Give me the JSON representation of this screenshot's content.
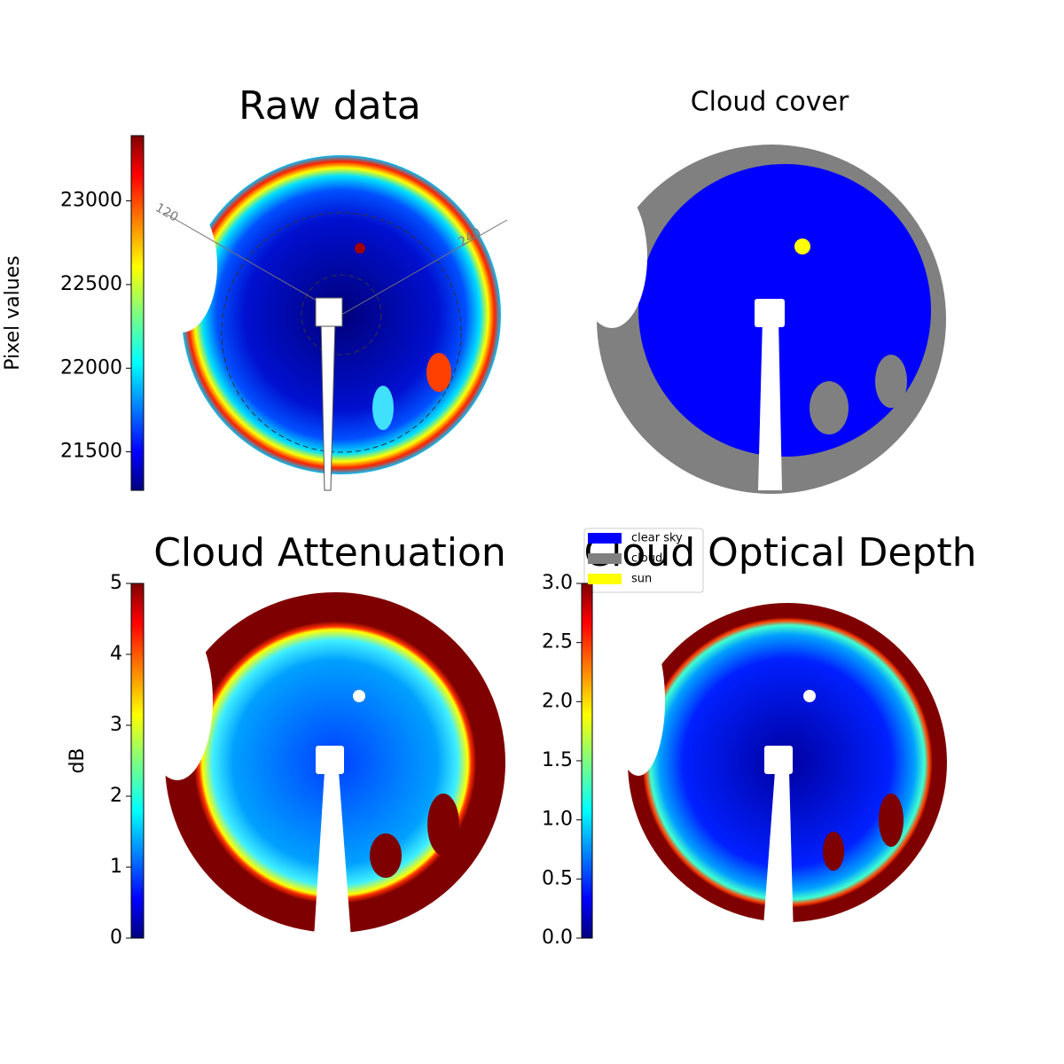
{
  "chart_data": [
    {
      "type": "image",
      "title": "Raw data",
      "colormap": "jet",
      "colorbar": {
        "label": "Pixel values",
        "clim": [
          21270,
          23390
        ],
        "ticks": [
          21500,
          22000,
          22500,
          23000
        ]
      },
      "annotations": [
        "120",
        "240"
      ]
    },
    {
      "type": "mask",
      "title": "Cloud cover",
      "legend": [
        {
          "name": "clear sky",
          "color": "#0000ff"
        },
        {
          "name": "cloud",
          "color": "#808080"
        },
        {
          "name": "sun",
          "color": "#ffff00"
        }
      ]
    },
    {
      "type": "image",
      "title": "Cloud Attenuation",
      "colormap": "jet",
      "colorbar": {
        "label": "dB",
        "clim": [
          0,
          5
        ],
        "ticks": [
          0,
          1,
          2,
          3,
          4,
          5
        ]
      }
    },
    {
      "type": "image",
      "title": "Cloud Optical Depth",
      "colormap": "jet",
      "colorbar": {
        "clim": [
          0,
          3
        ],
        "ticks": [
          {
            "value": 0,
            "label": "0.0"
          },
          0.5,
          {
            "value": 1,
            "label": "1.0"
          },
          1.5,
          {
            "value": 2,
            "label": "2.0"
          },
          2.5,
          {
            "value": 3,
            "label": "3.0"
          }
        ]
      }
    }
  ]
}
